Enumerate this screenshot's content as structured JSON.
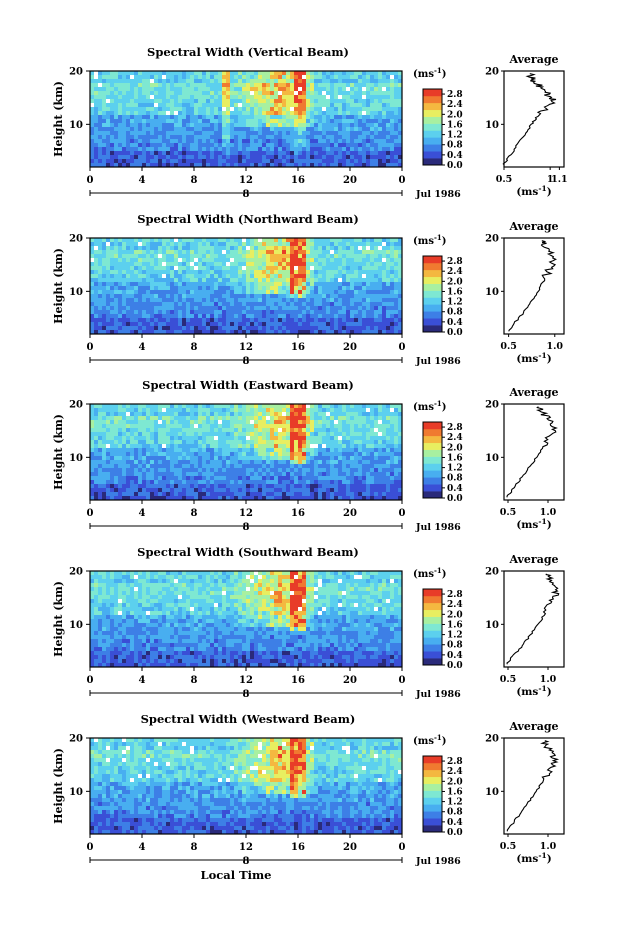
{
  "figure": {
    "x_axis_title": "Local Time",
    "date_label": "Jul 1986",
    "day_label": "8",
    "colorbar_unit": "(ms",
    "colorbar_unit_exp": "-1",
    "colorbar_unit_close": ")",
    "average_title": "Average",
    "average_unit": "(ms",
    "average_unit_exp": "-1",
    "average_unit_close": ")",
    "y_axis_title": "Height (km)",
    "colors": [
      "#2a2a7a",
      "#3a4fd6",
      "#3d7fe6",
      "#48aef0",
      "#5cd0ee",
      "#7ee8d2",
      "#a8f0a0",
      "#e8ee60",
      "#f4b840",
      "#f07a30",
      "#e83c28"
    ]
  },
  "chart_data": [
    {
      "type": "heatmap",
      "title": "Spectral Width (Vertical Beam)",
      "xlabel": "Local Time",
      "ylabel": "Height (km)",
      "xlim": [
        0,
        24
      ],
      "ylim": [
        2,
        20
      ],
      "xticks": [
        "0",
        "4",
        "8",
        "12",
        "16",
        "20",
        "0"
      ],
      "yticks": [
        "10",
        "20"
      ],
      "colorbar": {
        "unit": "(ms-1)",
        "ticks": [
          "0.0",
          "0.4",
          "0.8",
          "1.2",
          "1.6",
          "2.0",
          "2.4",
          "2.8"
        ],
        "range": [
          0,
          3.0
        ]
      },
      "average": {
        "title": "Average",
        "xlabel": "(ms-1)",
        "xticks": [
          "0.5",
          "1",
          "1.1"
        ],
        "xlim": [
          0.5,
          1.15
        ],
        "ylim": [
          2,
          20
        ],
        "profile": [
          [
            0.5,
            2.5
          ],
          [
            0.56,
            4
          ],
          [
            0.64,
            6
          ],
          [
            0.72,
            8
          ],
          [
            0.8,
            10
          ],
          [
            0.86,
            11.5
          ],
          [
            0.94,
            13
          ],
          [
            1.05,
            14.5
          ],
          [
            0.98,
            15.5
          ],
          [
            0.94,
            16.5
          ],
          [
            0.86,
            17.5
          ],
          [
            0.8,
            18.5
          ],
          [
            0.78,
            19.5
          ]
        ]
      }
    },
    {
      "type": "heatmap",
      "title": "Spectral Width (Northward Beam)",
      "xlabel": "Local Time",
      "ylabel": "Height (km)",
      "xlim": [
        0,
        24
      ],
      "ylim": [
        2,
        20
      ],
      "xticks": [
        "0",
        "4",
        "8",
        "12",
        "16",
        "20",
        "0"
      ],
      "yticks": [
        "10",
        "20"
      ],
      "colorbar": {
        "unit": "(ms-1)",
        "ticks": [
          "0.0",
          "0.4",
          "0.8",
          "1.2",
          "1.6",
          "2.0",
          "2.4",
          "2.8"
        ],
        "range": [
          0,
          3.0
        ]
      },
      "average": {
        "title": "Average",
        "xlabel": "(ms-1)",
        "xticks": [
          "0.5",
          "1.0"
        ],
        "xlim": [
          0.45,
          1.1
        ],
        "ylim": [
          2,
          20
        ],
        "profile": [
          [
            0.5,
            2.5
          ],
          [
            0.56,
            4
          ],
          [
            0.66,
            6
          ],
          [
            0.74,
            8
          ],
          [
            0.82,
            10
          ],
          [
            0.88,
            12
          ],
          [
            0.94,
            14
          ],
          [
            0.98,
            15.5
          ],
          [
            0.96,
            17
          ],
          [
            0.9,
            18.5
          ],
          [
            0.86,
            19.5
          ]
        ]
      }
    },
    {
      "type": "heatmap",
      "title": "Spectral Width (Eastward Beam)",
      "xlabel": "Local Time",
      "ylabel": "Height (km)",
      "xlim": [
        0,
        24
      ],
      "ylim": [
        2,
        20
      ],
      "xticks": [
        "0",
        "4",
        "8",
        "12",
        "16",
        "20",
        "0"
      ],
      "yticks": [
        "10",
        "20"
      ],
      "colorbar": {
        "unit": "(ms-1)",
        "ticks": [
          "0.0",
          "0.4",
          "0.8",
          "1.2",
          "1.6",
          "2.0",
          "2.4",
          "2.8"
        ],
        "range": [
          0,
          3.0
        ]
      },
      "average": {
        "title": "Average",
        "xlabel": "(ms-1)",
        "xticks": [
          "0.5",
          "1.0"
        ],
        "xlim": [
          0.45,
          1.2
        ],
        "ylim": [
          2,
          20
        ],
        "profile": [
          [
            0.48,
            2.5
          ],
          [
            0.56,
            4
          ],
          [
            0.66,
            6
          ],
          [
            0.76,
            8
          ],
          [
            0.86,
            10
          ],
          [
            0.94,
            12
          ],
          [
            1.02,
            14
          ],
          [
            1.1,
            15.5
          ],
          [
            1.02,
            17
          ],
          [
            0.92,
            18.5
          ],
          [
            0.88,
            19.5
          ]
        ]
      }
    },
    {
      "type": "heatmap",
      "title": "Spectral Width (Southward Beam)",
      "xlabel": "Local Time",
      "ylabel": "Height (km)",
      "xlim": [
        0,
        24
      ],
      "ylim": [
        2,
        20
      ],
      "xticks": [
        "0",
        "4",
        "8",
        "12",
        "16",
        "20",
        "0"
      ],
      "yticks": [
        "10",
        "20"
      ],
      "colorbar": {
        "unit": "(ms-1)",
        "ticks": [
          "0.0",
          "0.4",
          "0.8",
          "1.2",
          "1.6",
          "2.0",
          "2.4",
          "2.8"
        ],
        "range": [
          0,
          3.0
        ]
      },
      "average": {
        "title": "Average",
        "xlabel": "(ms-1)",
        "xticks": [
          "0.5",
          "1.0"
        ],
        "xlim": [
          0.45,
          1.2
        ],
        "ylim": [
          2,
          20
        ],
        "profile": [
          [
            0.48,
            2.5
          ],
          [
            0.56,
            4
          ],
          [
            0.68,
            6
          ],
          [
            0.78,
            8
          ],
          [
            0.88,
            10
          ],
          [
            0.96,
            12
          ],
          [
            1.04,
            14
          ],
          [
            1.1,
            15.5
          ],
          [
            1.08,
            17
          ],
          [
            1.02,
            18.5
          ],
          [
            0.98,
            19.5
          ]
        ]
      }
    },
    {
      "type": "heatmap",
      "title": "Spectral Width (Westward Beam)",
      "xlabel": "Local Time",
      "ylabel": "Height (km)",
      "xlim": [
        0,
        24
      ],
      "ylim": [
        2,
        20
      ],
      "xticks": [
        "0",
        "4",
        "8",
        "12",
        "16",
        "20",
        "0"
      ],
      "yticks": [
        "10",
        "20"
      ],
      "colorbar": {
        "unit": "(ms-1)",
        "ticks": [
          "0.0",
          "0.4",
          "0.8",
          "1.2",
          "1.6",
          "2.0",
          "2.4",
          "2.8"
        ],
        "range": [
          0,
          3.0
        ]
      },
      "average": {
        "title": "Average",
        "xlabel": "(ms-1)",
        "xticks": [
          "0.5",
          "1.0"
        ],
        "xlim": [
          0.45,
          1.2
        ],
        "ylim": [
          2,
          20
        ],
        "profile": [
          [
            0.48,
            2.5
          ],
          [
            0.56,
            4
          ],
          [
            0.66,
            6
          ],
          [
            0.76,
            8
          ],
          [
            0.86,
            10
          ],
          [
            0.94,
            12
          ],
          [
            1.02,
            14
          ],
          [
            1.1,
            15.5
          ],
          [
            1.06,
            17
          ],
          [
            0.98,
            18.5
          ],
          [
            0.96,
            19.5
          ]
        ]
      }
    }
  ]
}
